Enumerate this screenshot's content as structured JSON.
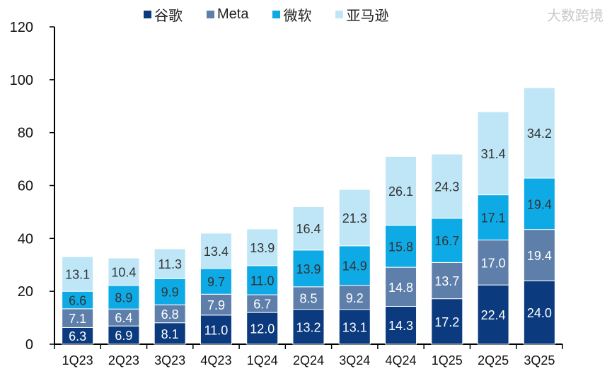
{
  "chart_data": {
    "type": "bar",
    "stacked": true,
    "title": "",
    "xlabel": "",
    "ylabel": "",
    "ylim": [
      0,
      120
    ],
    "yticks": [
      0,
      20,
      40,
      60,
      80,
      100,
      120
    ],
    "legend_position": "top",
    "categories": [
      "1Q23",
      "2Q23",
      "3Q23",
      "4Q23",
      "1Q24",
      "2Q24",
      "3Q24",
      "4Q24",
      "1Q25",
      "2Q25",
      "3Q25"
    ],
    "series": [
      {
        "name": "谷歌",
        "color": "#0b3a7e",
        "label_color": "#ffffff",
        "values": [
          6.3,
          6.9,
          8.1,
          11.0,
          12.0,
          13.2,
          13.1,
          14.3,
          17.2,
          22.4,
          24.0
        ]
      },
      {
        "name": "Meta",
        "color": "#5f7fab",
        "label_color": "#ffffff",
        "values": [
          7.1,
          6.4,
          6.8,
          7.9,
          6.7,
          8.5,
          9.2,
          14.8,
          13.7,
          17.0,
          19.4
        ]
      },
      {
        "name": "微软",
        "color": "#0eaae6",
        "label_color": "#333333",
        "values": [
          6.6,
          8.9,
          9.9,
          9.7,
          11.0,
          13.9,
          14.9,
          15.8,
          16.7,
          17.1,
          19.4
        ]
      },
      {
        "name": "亚马逊",
        "color": "#bfe6f7",
        "label_color": "#333333",
        "values": [
          13.1,
          10.4,
          11.3,
          13.4,
          13.9,
          16.4,
          21.3,
          26.1,
          24.3,
          31.4,
          34.2
        ]
      }
    ]
  },
  "watermark": "大数跨境"
}
